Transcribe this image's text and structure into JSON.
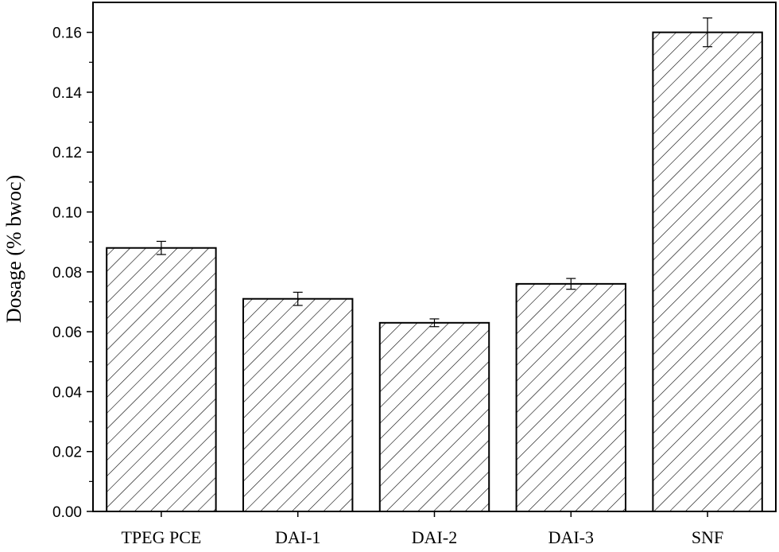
{
  "chart_data": {
    "type": "bar",
    "categories": [
      "TPEG PCE",
      "DAI-1",
      "DAI-2",
      "DAI-3",
      "SNF"
    ],
    "values": [
      0.088,
      0.071,
      0.063,
      0.076,
      0.16
    ],
    "errors": [
      0.0022,
      0.0022,
      0.0013,
      0.0018,
      0.0048
    ],
    "ylabel": "Dosage (% bwoc)",
    "xlabel": "",
    "ylim": [
      0.0,
      0.17
    ],
    "yticks": [
      "0.00",
      "0.02",
      "0.04",
      "0.06",
      "0.08",
      "0.10",
      "0.12",
      "0.14",
      "0.16"
    ],
    "ytick_values": [
      0.0,
      0.02,
      0.04,
      0.06,
      0.08,
      0.1,
      0.12,
      0.14,
      0.16
    ],
    "bar_fill": "hatched",
    "grid": false,
    "legend": "none",
    "colors": {
      "bar_edge": "#000000",
      "hatch": "#000000",
      "background": "#ffffff"
    }
  }
}
